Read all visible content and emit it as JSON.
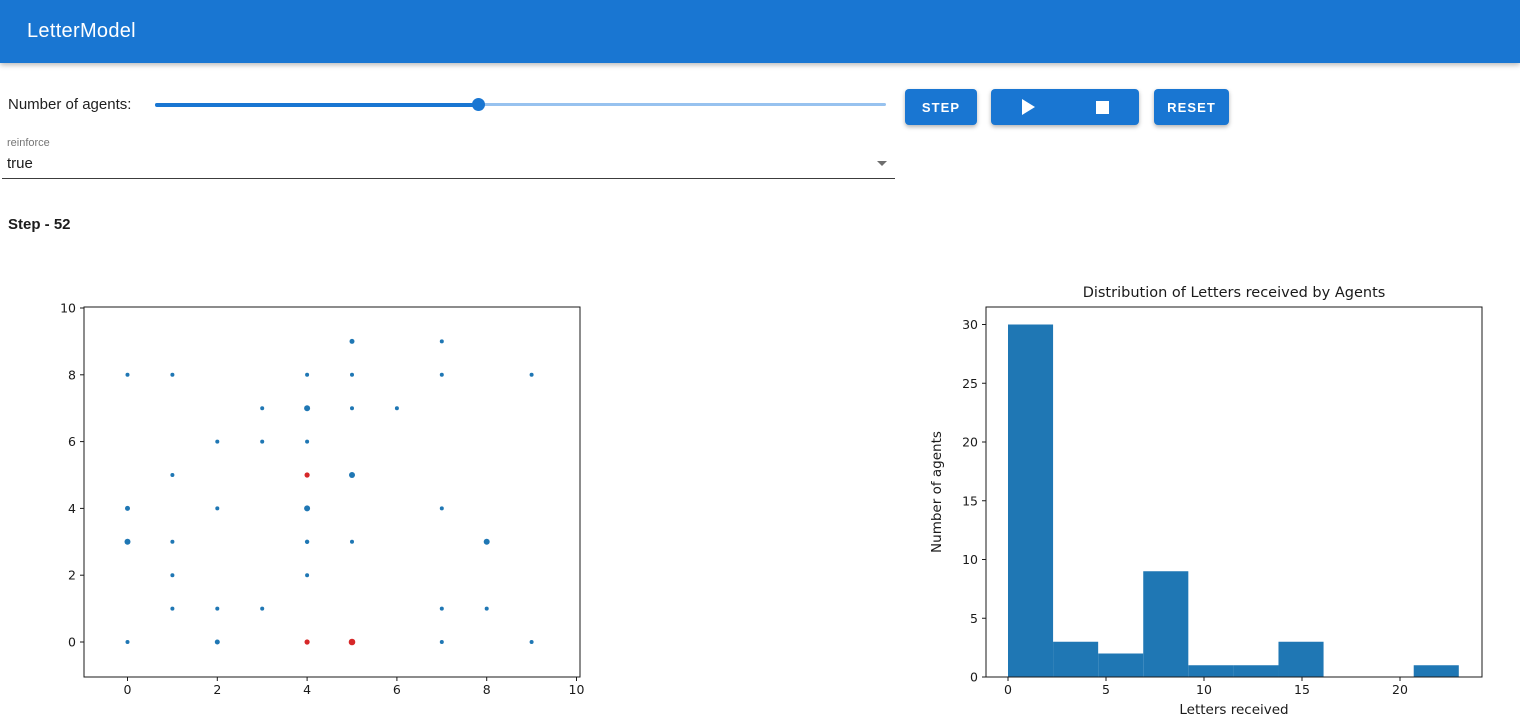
{
  "header": {
    "title": "LetterModel"
  },
  "controls": {
    "agents_label": "Number of agents:",
    "slider": {
      "fill_percent": 44.3
    },
    "step_button": "STEP",
    "reset_button": "RESET",
    "icons": {
      "play": "play-triangle",
      "stop": "stop-square"
    }
  },
  "reinforce_select": {
    "label": "reinforce",
    "value": "true",
    "icon": "caret-down"
  },
  "status": {
    "step_text": "Step - 52"
  },
  "colors": {
    "primary": "#1976d2",
    "scatter_blue": "#1f77b4",
    "scatter_red": "#d62728",
    "bar_blue": "#1f77b4"
  },
  "chart_data": [
    {
      "type": "scatter",
      "title": "",
      "xlabel": "",
      "ylabel": "",
      "xticks": [
        0,
        2,
        4,
        6,
        8,
        10
      ],
      "yticks": [
        0,
        2,
        4,
        6,
        8,
        10
      ],
      "xlim": [
        -1,
        10.1
      ],
      "ylim": [
        -1.05,
        10.05
      ],
      "grid": false,
      "series": [
        {
          "name": "agents",
          "color": "#1f77b4",
          "points": [
            [
              5,
              9,
              2.5
            ],
            [
              7,
              9,
              2
            ],
            [
              0,
              8,
              2
            ],
            [
              1,
              8,
              2
            ],
            [
              4,
              8,
              2
            ],
            [
              5,
              8,
              2
            ],
            [
              7,
              8,
              2
            ],
            [
              9,
              8,
              2
            ],
            [
              3,
              7,
              2
            ],
            [
              4,
              7,
              3
            ],
            [
              5,
              7,
              2
            ],
            [
              6,
              7,
              2
            ],
            [
              2,
              6,
              2
            ],
            [
              3,
              6,
              2
            ],
            [
              4,
              6,
              2
            ],
            [
              1,
              5,
              2
            ],
            [
              5,
              5,
              3
            ],
            [
              0,
              4,
              2.5
            ],
            [
              2,
              4,
              2
            ],
            [
              4,
              4,
              3
            ],
            [
              7,
              4,
              2
            ],
            [
              0,
              3,
              3
            ],
            [
              1,
              3,
              2
            ],
            [
              4,
              3,
              2.2
            ],
            [
              5,
              3,
              2
            ],
            [
              8,
              3,
              3
            ],
            [
              1,
              2,
              2
            ],
            [
              4,
              2,
              2
            ],
            [
              1,
              1,
              2
            ],
            [
              2,
              1,
              2
            ],
            [
              3,
              1,
              2
            ],
            [
              7,
              1,
              2
            ],
            [
              8,
              1,
              2
            ],
            [
              0,
              0,
              2
            ],
            [
              2,
              0,
              2.5
            ],
            [
              7,
              0,
              2
            ],
            [
              9,
              0,
              2
            ]
          ]
        },
        {
          "name": "highlighted-agents",
          "color": "#d62728",
          "points": [
            [
              4,
              5,
              2.6
            ],
            [
              4,
              0,
              2.6
            ],
            [
              5,
              0,
              3.3
            ]
          ]
        }
      ]
    },
    {
      "type": "histogram",
      "title": "Distribution of Letters received by Agents",
      "xlabel": "Letters received",
      "ylabel": "Number of agents",
      "bin_start": 0,
      "bin_width": 2.3,
      "counts": [
        30,
        3,
        2,
        9,
        1,
        1,
        3,
        0,
        0,
        1
      ],
      "xticks": [
        0,
        5,
        10,
        15,
        20
      ],
      "yticks": [
        0,
        5,
        10,
        15,
        20,
        25,
        30
      ],
      "xlim": [
        -1.2,
        24.2
      ],
      "ylim": [
        0,
        31.5
      ],
      "grid": false,
      "color": "#1f77b4"
    }
  ]
}
